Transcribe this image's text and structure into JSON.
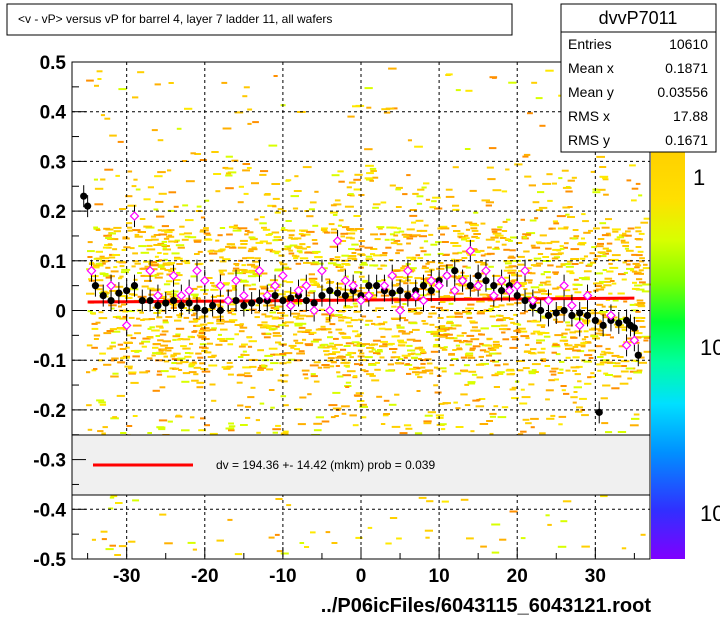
{
  "chart_data": {
    "type": "scatter",
    "title": "<v - vP>       versus   vP for barrel 4, layer 7 ladder 11, all wafers",
    "xlim": [
      -37,
      37
    ],
    "ylim": [
      -0.5,
      0.5
    ],
    "x_ticks": [
      "-30",
      "-20",
      "-10",
      "0",
      "10",
      "20",
      "30"
    ],
    "x_tick_values": [
      -30,
      -20,
      -10,
      0,
      10,
      20,
      30
    ],
    "y_ticks": [
      "0.5",
      "0.4",
      "0.3",
      "0.2",
      "0.1",
      "0",
      "-0.1",
      "-0.2",
      "-0.3",
      "-0.4",
      "-0.5"
    ],
    "y_tick_values": [
      0.5,
      0.4,
      0.3,
      0.2,
      0.1,
      0,
      -0.1,
      -0.2,
      -0.3,
      -0.4,
      -0.5
    ],
    "grid": true,
    "footer": "../P06icFiles/6043115_6043121.root",
    "stats": {
      "name": "dvvP7011",
      "rows": [
        {
          "label": "Entries",
          "value": "10610"
        },
        {
          "label": "Mean x",
          "value": "0.1871"
        },
        {
          "label": "Mean y",
          "value": "0.03556"
        },
        {
          "label": "RMS x",
          "value": "17.88"
        },
        {
          "label": "RMS y",
          "value": "0.1671"
        }
      ]
    },
    "legend": {
      "text": "dv =  194.36 +- 14.42 (mkm) prob = 0.039",
      "line_color": "#ff0000",
      "placement": "lower-middle"
    },
    "fit_line": {
      "x": [
        -35,
        35
      ],
      "y": [
        0.017,
        0.025
      ],
      "color": "#ff0000"
    },
    "colorbar_labels": [
      "1",
      "10",
      "10"
    ],
    "series": [
      {
        "marker": "filled-circle",
        "color": "#000000",
        "points": [
          [
            -35.5,
            0.23
          ],
          [
            -35,
            0.21
          ],
          [
            -34,
            0.05
          ],
          [
            -33,
            0.03
          ],
          [
            -32,
            0.02
          ],
          [
            -31,
            0.035
          ],
          [
            -30,
            0.04
          ],
          [
            -29,
            0.05
          ],
          [
            -28,
            0.02
          ],
          [
            -27,
            0.02
          ],
          [
            -26,
            0.01
          ],
          [
            -25,
            0.015
          ],
          [
            -24,
            0.02
          ],
          [
            -23,
            0.01
          ],
          [
            -22,
            0.015
          ],
          [
            -21,
            0.005
          ],
          [
            -20,
            0.0
          ],
          [
            -19,
            0.01
          ],
          [
            -18,
            0.0
          ],
          [
            -17,
            0.02
          ],
          [
            -16,
            0.02
          ],
          [
            -15,
            0.01
          ],
          [
            -14,
            0.015
          ],
          [
            -13,
            0.02
          ],
          [
            -12,
            0.02
          ],
          [
            -11,
            0.03
          ],
          [
            -10,
            0.02
          ],
          [
            -9,
            0.025
          ],
          [
            -8,
            0.03
          ],
          [
            -7,
            0.02
          ],
          [
            -6,
            0.015
          ],
          [
            -5,
            0.03
          ],
          [
            -4,
            0.04
          ],
          [
            -3,
            0.035
          ],
          [
            -2,
            0.03
          ],
          [
            -1,
            0.04
          ],
          [
            0,
            0.03
          ],
          [
            1,
            0.05
          ],
          [
            2,
            0.05
          ],
          [
            3,
            0.04
          ],
          [
            4,
            0.035
          ],
          [
            5,
            0.04
          ],
          [
            6,
            0.03
          ],
          [
            7,
            0.04
          ],
          [
            8,
            0.05
          ],
          [
            9,
            0.04
          ],
          [
            10,
            0.06
          ],
          [
            11,
            0.07
          ],
          [
            12,
            0.08
          ],
          [
            13,
            0.06
          ],
          [
            14,
            0.05
          ],
          [
            15,
            0.07
          ],
          [
            16,
            0.06
          ],
          [
            17,
            0.05
          ],
          [
            18,
            0.04
          ],
          [
            19,
            0.05
          ],
          [
            20,
            0.03
          ],
          [
            21,
            0.02
          ],
          [
            22,
            0.01
          ],
          [
            23,
            0.0
          ],
          [
            24,
            -0.01
          ],
          [
            25,
            -0.005
          ],
          [
            26,
            0.0
          ],
          [
            27,
            -0.01
          ],
          [
            28,
            -0.005
          ],
          [
            29,
            -0.01
          ],
          [
            30,
            -0.02
          ],
          [
            31,
            -0.03
          ],
          [
            32,
            -0.02
          ],
          [
            33,
            -0.025
          ],
          [
            34,
            -0.02
          ],
          [
            34.5,
            -0.03
          ],
          [
            35,
            -0.035
          ],
          [
            35.5,
            -0.09
          ],
          [
            30.5,
            -0.205
          ]
        ]
      },
      {
        "marker": "open-diamond",
        "color": "#ff00ff",
        "points": [
          [
            -34.5,
            0.08
          ],
          [
            -32,
            0.05
          ],
          [
            -30,
            -0.03
          ],
          [
            -29,
            0.19
          ],
          [
            -27,
            0.08
          ],
          [
            -26,
            0.03
          ],
          [
            -24,
            0.07
          ],
          [
            -23,
            0.03
          ],
          [
            -22,
            0.04
          ],
          [
            -21,
            0.08
          ],
          [
            -20,
            0.06
          ],
          [
            -18,
            0.05
          ],
          [
            -17,
            0.02
          ],
          [
            -16,
            0.06
          ],
          [
            -15,
            0.03
          ],
          [
            -13,
            0.08
          ],
          [
            -12,
            0.03
          ],
          [
            -11,
            0.05
          ],
          [
            -10,
            0.07
          ],
          [
            -9,
            0.01
          ],
          [
            -8,
            0.04
          ],
          [
            -7,
            0.05
          ],
          [
            -6,
            0.0
          ],
          [
            -5,
            0.08
          ],
          [
            -4,
            0.0
          ],
          [
            -3,
            0.14
          ],
          [
            -2,
            0.06
          ],
          [
            -1,
            0.05
          ],
          [
            0,
            0.02
          ],
          [
            1,
            0.03
          ],
          [
            3,
            0.05
          ],
          [
            4,
            0.07
          ],
          [
            5,
            0.0
          ],
          [
            6,
            0.08
          ],
          [
            7,
            0.03
          ],
          [
            8,
            0.02
          ],
          [
            9,
            0.06
          ],
          [
            10,
            0.05
          ],
          [
            11,
            0.07
          ],
          [
            12,
            0.04
          ],
          [
            13,
            0.06
          ],
          [
            14,
            0.12
          ],
          [
            15,
            0.05
          ],
          [
            16,
            0.08
          ],
          [
            17,
            0.03
          ],
          [
            18,
            0.06
          ],
          [
            19,
            0.04
          ],
          [
            20,
            0.05
          ],
          [
            21,
            0.08
          ],
          [
            22,
            0.02
          ],
          [
            24,
            0.02
          ],
          [
            26,
            0.05
          ],
          [
            27,
            0.01
          ],
          [
            28,
            -0.03
          ],
          [
            29,
            0.03
          ],
          [
            32,
            -0.01
          ],
          [
            34,
            -0.07
          ],
          [
            35,
            -0.06
          ]
        ]
      }
    ]
  }
}
